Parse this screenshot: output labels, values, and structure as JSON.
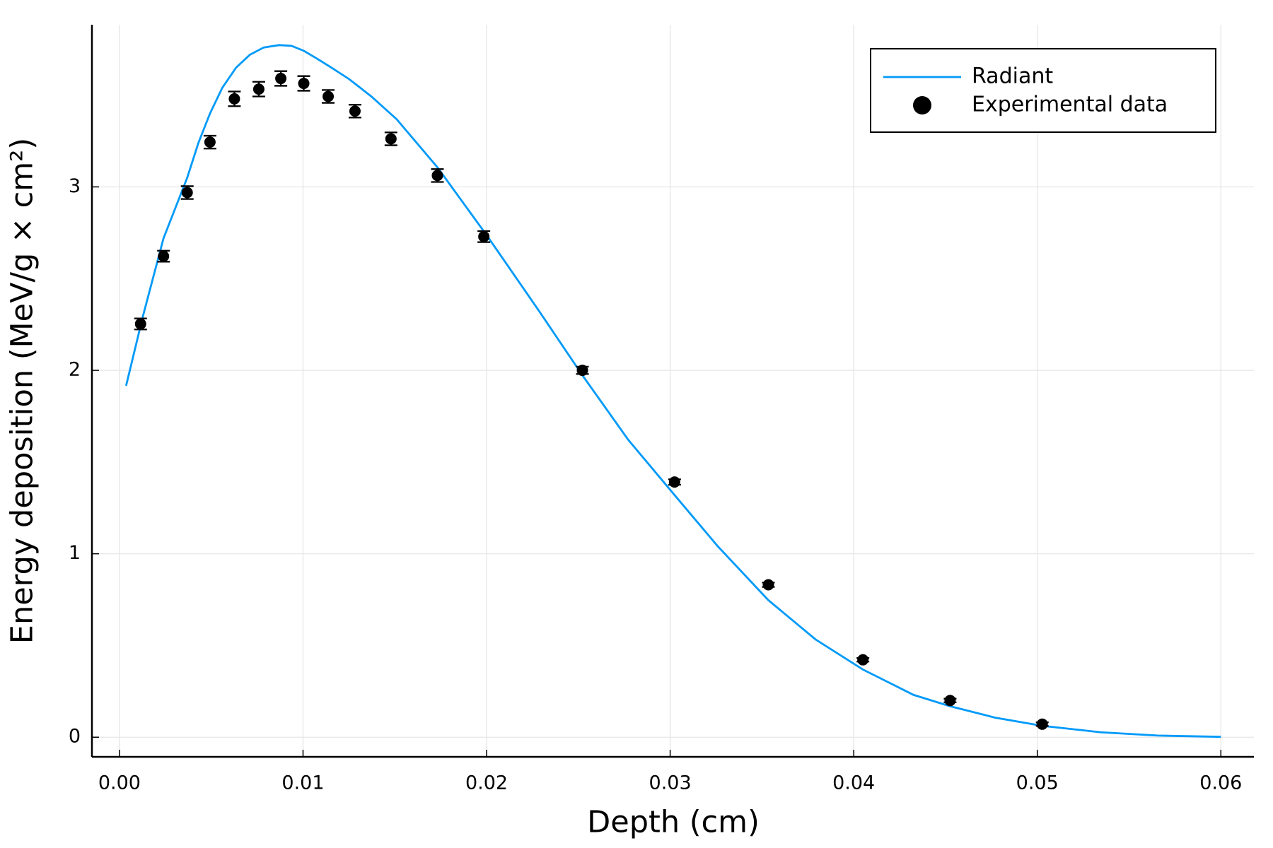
{
  "chart_data": {
    "type": "line",
    "x_label": "Depth (cm)",
    "y_label": "Energy deposition (MeV/g × cm²)",
    "xlim": [
      -0.0015,
      0.0618
    ],
    "ylim": [
      -0.107,
      3.884
    ],
    "xticks": [
      {
        "value": 0,
        "label": "0.00"
      },
      0.01,
      0.02,
      0.03,
      0.04,
      0.05,
      0.06
    ],
    "yticks": [
      0,
      1,
      2,
      3
    ],
    "grid": true,
    "legend": "top-right",
    "series": [
      {
        "name": "Radiant",
        "type": "line",
        "color": "#009af9",
        "x": [
          0.00036,
          0.00129,
          0.0024,
          0.00369,
          0.0043,
          0.00493,
          0.0056,
          0.00635,
          0.0071,
          0.00786,
          0.0087,
          0.00937,
          0.01004,
          0.01075,
          0.0115,
          0.01252,
          0.01372,
          0.0151,
          0.01732,
          0.02003,
          0.02282,
          0.02522,
          0.02771,
          0.03024,
          0.0326,
          0.03535,
          0.03792,
          0.0405,
          0.04325,
          0.04525,
          0.04769,
          0.05027,
          0.05346,
          0.05657,
          0.06
        ],
        "values": [
          1.916,
          2.3,
          2.72,
          3.05,
          3.24,
          3.4,
          3.54,
          3.65,
          3.72,
          3.76,
          3.773,
          3.769,
          3.742,
          3.7,
          3.653,
          3.587,
          3.493,
          3.369,
          3.107,
          2.733,
          2.329,
          1.973,
          1.622,
          1.32,
          1.04,
          0.747,
          0.533,
          0.369,
          0.231,
          0.169,
          0.107,
          0.062,
          0.027,
          0.009,
          0.002
        ]
      },
      {
        "name": "Experimental data",
        "type": "scatter",
        "color": "#000000",
        "x": [
          0.00115,
          0.0024,
          0.00369,
          0.00493,
          0.00626,
          0.00759,
          0.00879,
          0.01004,
          0.01137,
          0.01283,
          0.01479,
          0.01732,
          0.01985,
          0.02522,
          0.03024,
          0.03535,
          0.0405,
          0.04525,
          0.05027
        ],
        "values": [
          2.253,
          2.622,
          2.969,
          3.244,
          3.48,
          3.533,
          3.591,
          3.564,
          3.493,
          3.413,
          3.262,
          3.062,
          2.729,
          2.0,
          1.391,
          0.831,
          0.422,
          0.2,
          0.071
        ],
        "errors": [
          0.03,
          0.03,
          0.035,
          0.035,
          0.04,
          0.04,
          0.04,
          0.04,
          0.035,
          0.035,
          0.035,
          0.035,
          0.03,
          0.02,
          0.015,
          0.012,
          0.01,
          0.01,
          0.01
        ]
      }
    ]
  }
}
